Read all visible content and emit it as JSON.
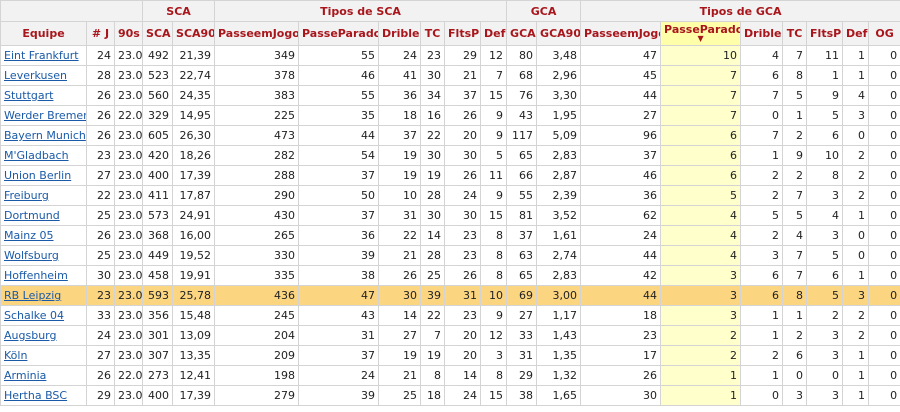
{
  "groups": {
    "sca": "SCA",
    "tipos_sca": "Tipos de SCA",
    "gca": "GCA",
    "tipos_gca": "Tipos de GCA"
  },
  "columns": [
    "Equipe",
    "# J",
    "90s",
    "SCA",
    "SCA90",
    "PasseemJogo",
    "PasseParado",
    "Drible",
    "TC",
    "FltsP",
    "Def",
    "GCA",
    "GCA90",
    "PasseemJogo",
    "PasseParado",
    "Drible",
    "TC",
    "FltsP",
    "Def",
    "OG"
  ],
  "sort_arrow": "▼",
  "highlight_row_index": 13,
  "rows": [
    [
      "Eint Frankfurt",
      "24",
      "23.0",
      "492",
      "21,39",
      "349",
      "55",
      "24",
      "23",
      "29",
      "12",
      "80",
      "3,48",
      "47",
      "10",
      "4",
      "7",
      "11",
      "1",
      "0"
    ],
    [
      "Leverkusen",
      "28",
      "23.0",
      "523",
      "22,74",
      "378",
      "46",
      "41",
      "30",
      "21",
      "7",
      "68",
      "2,96",
      "45",
      "7",
      "6",
      "8",
      "1",
      "1",
      "0"
    ],
    [
      "Stuttgart",
      "26",
      "23.0",
      "560",
      "24,35",
      "383",
      "55",
      "36",
      "34",
      "37",
      "15",
      "76",
      "3,30",
      "44",
      "7",
      "7",
      "5",
      "9",
      "4",
      "0"
    ],
    [
      "Werder Bremen",
      "26",
      "22.0",
      "329",
      "14,95",
      "225",
      "35",
      "18",
      "16",
      "26",
      "9",
      "43",
      "1,95",
      "27",
      "7",
      "0",
      "1",
      "5",
      "3",
      "0"
    ],
    [
      "Bayern Munich",
      "26",
      "23.0",
      "605",
      "26,30",
      "473",
      "44",
      "37",
      "22",
      "20",
      "9",
      "117",
      "5,09",
      "96",
      "6",
      "7",
      "2",
      "6",
      "0",
      "0"
    ],
    [
      "M'Gladbach",
      "23",
      "23.0",
      "420",
      "18,26",
      "282",
      "54",
      "19",
      "30",
      "30",
      "5",
      "65",
      "2,83",
      "37",
      "6",
      "1",
      "9",
      "10",
      "2",
      "0"
    ],
    [
      "Union Berlin",
      "27",
      "23.0",
      "400",
      "17,39",
      "288",
      "37",
      "19",
      "19",
      "26",
      "11",
      "66",
      "2,87",
      "46",
      "6",
      "2",
      "2",
      "8",
      "2",
      "0"
    ],
    [
      "Freiburg",
      "22",
      "23.0",
      "411",
      "17,87",
      "290",
      "50",
      "10",
      "28",
      "24",
      "9",
      "55",
      "2,39",
      "36",
      "5",
      "2",
      "7",
      "3",
      "2",
      "0"
    ],
    [
      "Dortmund",
      "25",
      "23.0",
      "573",
      "24,91",
      "430",
      "37",
      "31",
      "30",
      "30",
      "15",
      "81",
      "3,52",
      "62",
      "4",
      "5",
      "5",
      "4",
      "1",
      "0"
    ],
    [
      "Mainz 05",
      "26",
      "23.0",
      "368",
      "16,00",
      "265",
      "36",
      "22",
      "14",
      "23",
      "8",
      "37",
      "1,61",
      "24",
      "4",
      "2",
      "4",
      "3",
      "0",
      "0"
    ],
    [
      "Wolfsburg",
      "25",
      "23.0",
      "449",
      "19,52",
      "330",
      "39",
      "21",
      "28",
      "23",
      "8",
      "63",
      "2,74",
      "44",
      "4",
      "3",
      "7",
      "5",
      "0",
      "0"
    ],
    [
      "Hoffenheim",
      "30",
      "23.0",
      "458",
      "19,91",
      "335",
      "38",
      "26",
      "25",
      "26",
      "8",
      "65",
      "2,83",
      "42",
      "3",
      "6",
      "7",
      "6",
      "1",
      "0"
    ],
    [
      "RB Leipzig",
      "23",
      "23.0",
      "593",
      "25,78",
      "436",
      "47",
      "30",
      "39",
      "31",
      "10",
      "69",
      "3,00",
      "44",
      "3",
      "6",
      "8",
      "5",
      "3",
      "0"
    ],
    [
      "Schalke 04",
      "33",
      "23.0",
      "356",
      "15,48",
      "245",
      "43",
      "14",
      "22",
      "23",
      "9",
      "27",
      "1,17",
      "18",
      "3",
      "1",
      "1",
      "2",
      "2",
      "0"
    ],
    [
      "Augsburg",
      "24",
      "23.0",
      "301",
      "13,09",
      "204",
      "31",
      "27",
      "7",
      "20",
      "12",
      "33",
      "1,43",
      "23",
      "2",
      "1",
      "2",
      "3",
      "2",
      "0"
    ],
    [
      "Köln",
      "27",
      "23.0",
      "307",
      "13,35",
      "209",
      "37",
      "19",
      "19",
      "20",
      "3",
      "31",
      "1,35",
      "17",
      "2",
      "2",
      "6",
      "3",
      "1",
      "0"
    ],
    [
      "Arminia",
      "26",
      "22.0",
      "273",
      "12,41",
      "198",
      "24",
      "21",
      "8",
      "14",
      "8",
      "29",
      "1,32",
      "26",
      "1",
      "1",
      "0",
      "0",
      "1",
      "0"
    ],
    [
      "Hertha BSC",
      "29",
      "23.0",
      "400",
      "17,39",
      "279",
      "39",
      "25",
      "18",
      "24",
      "15",
      "38",
      "1,65",
      "30",
      "1",
      "0",
      "3",
      "3",
      "1",
      "0"
    ]
  ],
  "highlight_team": "RB Leipzig"
}
